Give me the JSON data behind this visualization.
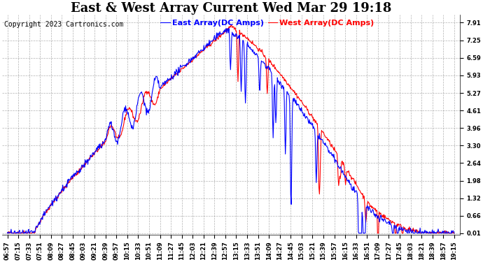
{
  "title": "East & West Array Current Wed Mar 29 19:18",
  "copyright": "Copyright 2023 Cartronics.com",
  "legend_east": "East Array(DC Amps)",
  "legend_west": "West Array(DC Amps)",
  "color_east": "blue",
  "color_west": "red",
  "background_color": "white",
  "plot_bg_color": "white",
  "yticks": [
    0.01,
    0.66,
    1.32,
    1.98,
    2.64,
    3.3,
    3.96,
    4.61,
    5.27,
    5.93,
    6.59,
    7.25,
    7.91
  ],
  "ymin": 0.01,
  "ymax": 7.91,
  "xtick_labels": [
    "06:57",
    "07:15",
    "07:33",
    "07:51",
    "08:09",
    "08:27",
    "08:45",
    "09:03",
    "09:21",
    "09:39",
    "09:57",
    "10:15",
    "10:33",
    "10:51",
    "11:09",
    "11:27",
    "11:45",
    "12:03",
    "12:21",
    "12:39",
    "12:57",
    "13:15",
    "13:33",
    "13:51",
    "14:09",
    "14:27",
    "14:45",
    "15:03",
    "15:21",
    "15:39",
    "15:57",
    "16:15",
    "16:33",
    "16:51",
    "17:09",
    "17:27",
    "17:45",
    "18:03",
    "18:21",
    "18:39",
    "18:57",
    "19:15"
  ],
  "line_width": 0.8,
  "title_fontsize": 13,
  "tick_fontsize": 6,
  "legend_fontsize": 8,
  "copyright_fontsize": 7
}
